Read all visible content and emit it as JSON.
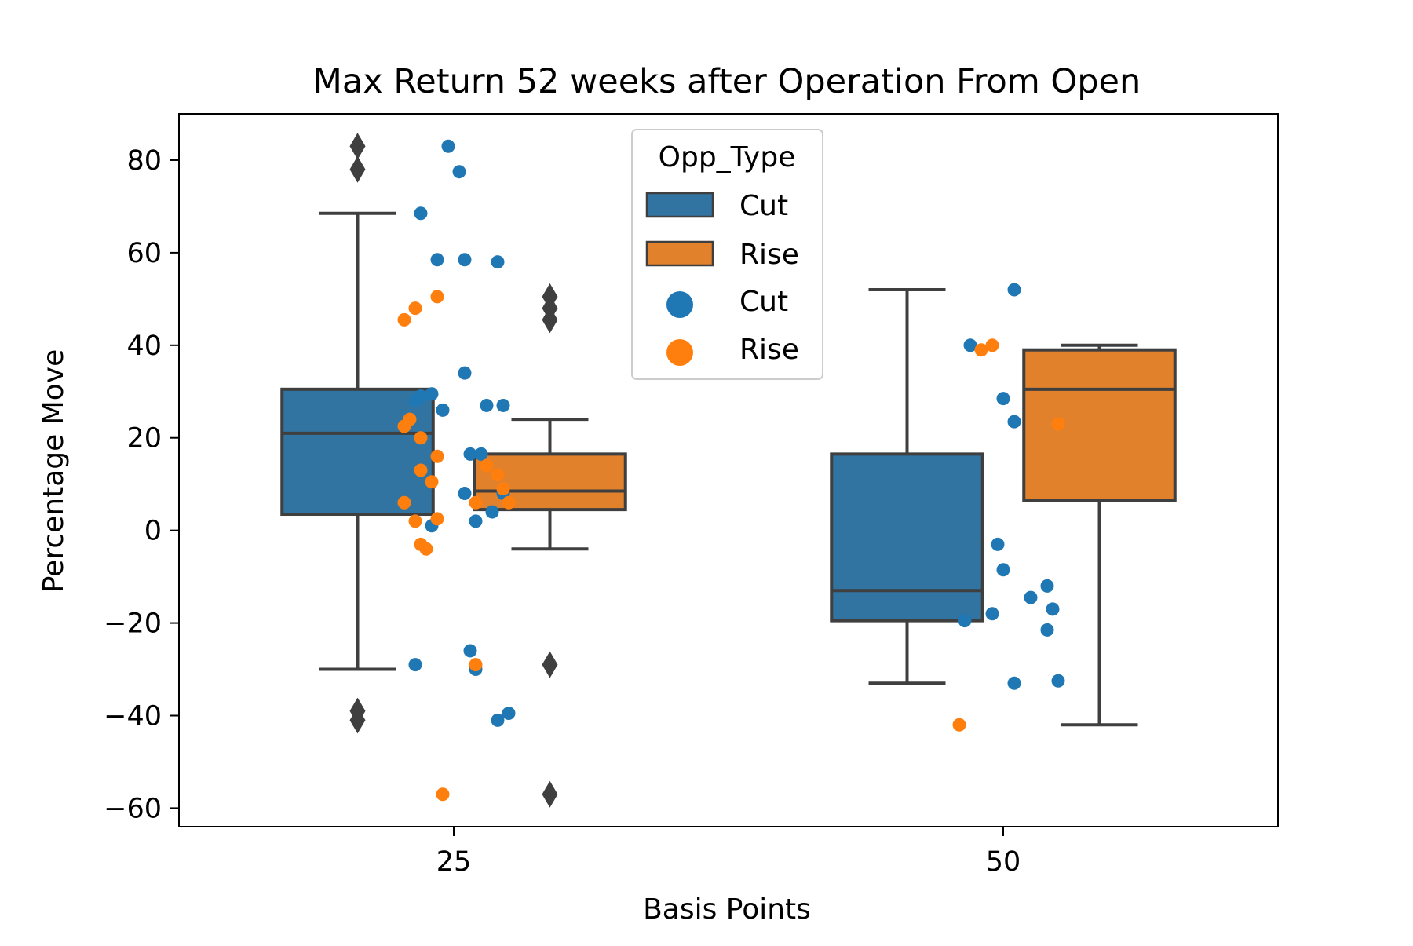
{
  "chart_data": {
    "type": "box",
    "title": "Max Return 52 weeks after Operation From Open",
    "xlabel": "Basis Points",
    "ylabel": "Percentage Move",
    "categories": [
      "25",
      "50"
    ],
    "ylim": [
      -64,
      90
    ],
    "yticks": [
      -60,
      -40,
      -20,
      0,
      20,
      40,
      60,
      80
    ],
    "ytick_labels": [
      "−60",
      "−40",
      "−20",
      "0",
      "20",
      "40",
      "60",
      "80"
    ],
    "grid": false,
    "legend": {
      "title": "Opp_Type",
      "placement": "upper-center",
      "box_entries": [
        "Cut",
        "Rise"
      ],
      "point_entries": [
        "Cut",
        "Rise"
      ]
    },
    "colors": {
      "Cut": "#3274a1",
      "Rise": "#e1812c",
      "Cut_point": "#1f77b4",
      "Rise_point": "#ff7f0e",
      "edge": "#3f3f3f"
    },
    "boxes": [
      {
        "category": "25",
        "hue": "Cut",
        "whisker_low": -30,
        "q1": 3.5,
        "median": 21,
        "q3": 30.5,
        "whisker_high": 68.5,
        "outliers": [
          83,
          78,
          -39,
          -41
        ]
      },
      {
        "category": "25",
        "hue": "Rise",
        "whisker_low": -4,
        "q1": 4.5,
        "median": 8.5,
        "q3": 16.5,
        "whisker_high": 24,
        "outliers": [
          50.5,
          48,
          45.5,
          -29,
          -57
        ]
      },
      {
        "category": "50",
        "hue": "Cut",
        "whisker_low": -33,
        "q1": -19.5,
        "median": -13,
        "q3": 16.5,
        "whisker_high": 52,
        "outliers": []
      },
      {
        "category": "50",
        "hue": "Rise",
        "whisker_low": -42,
        "q1": 6.5,
        "median": 30.5,
        "q3": 39,
        "whisker_high": 40,
        "outliers": []
      }
    ],
    "points": [
      {
        "category": "25",
        "hue": "Cut",
        "values": [
          [
            -0.06,
            68.5
          ],
          [
            -0.01,
            83
          ],
          [
            0.01,
            77.5
          ],
          [
            -0.03,
            58.5
          ],
          [
            0.02,
            58.5
          ],
          [
            0.08,
            58
          ],
          [
            0.02,
            34
          ],
          [
            0.06,
            27
          ],
          [
            0.09,
            27
          ],
          [
            -0.04,
            29.5
          ],
          [
            -0.06,
            29
          ],
          [
            -0.07,
            28
          ],
          [
            -0.02,
            26
          ],
          [
            0.03,
            16.5
          ],
          [
            0.05,
            16.5
          ],
          [
            0.02,
            8
          ],
          [
            0.09,
            8
          ],
          [
            0.07,
            4
          ],
          [
            0.04,
            2
          ],
          [
            -0.04,
            1
          ],
          [
            0.03,
            -26
          ],
          [
            -0.07,
            -29
          ],
          [
            0.04,
            -30
          ],
          [
            0.08,
            -41
          ],
          [
            0.1,
            -39.5
          ]
        ]
      },
      {
        "category": "25",
        "hue": "Rise",
        "values": [
          [
            -0.09,
            45.5
          ],
          [
            -0.07,
            48
          ],
          [
            -0.03,
            50.5
          ],
          [
            -0.09,
            22.5
          ],
          [
            -0.08,
            24
          ],
          [
            -0.06,
            20
          ],
          [
            -0.03,
            16
          ],
          [
            -0.06,
            13
          ],
          [
            -0.04,
            10.5
          ],
          [
            0.06,
            14
          ],
          [
            0.08,
            12
          ],
          [
            0.09,
            9
          ],
          [
            0.1,
            6
          ],
          [
            -0.09,
            6
          ],
          [
            0.04,
            6
          ],
          [
            -0.07,
            2
          ],
          [
            -0.03,
            2.5
          ],
          [
            -0.06,
            -3
          ],
          [
            -0.05,
            -4
          ],
          [
            0.04,
            -29
          ],
          [
            -0.02,
            -57
          ]
        ]
      },
      {
        "category": "50",
        "hue": "Cut",
        "values": [
          [
            0.02,
            52
          ],
          [
            -0.06,
            40
          ],
          [
            0.0,
            28.5
          ],
          [
            0.02,
            23.5
          ],
          [
            -0.01,
            -3
          ],
          [
            0.0,
            -8.5
          ],
          [
            -0.02,
            -18
          ],
          [
            -0.07,
            -19.5
          ],
          [
            0.05,
            -14.5
          ],
          [
            0.08,
            -12
          ],
          [
            0.09,
            -17
          ],
          [
            0.08,
            -21.5
          ],
          [
            0.1,
            -32.5
          ],
          [
            0.02,
            -33
          ]
        ]
      },
      {
        "category": "50",
        "hue": "Rise",
        "values": [
          [
            -0.02,
            40
          ],
          [
            -0.04,
            39
          ],
          [
            0.1,
            23
          ],
          [
            -0.08,
            -42
          ]
        ]
      }
    ]
  }
}
